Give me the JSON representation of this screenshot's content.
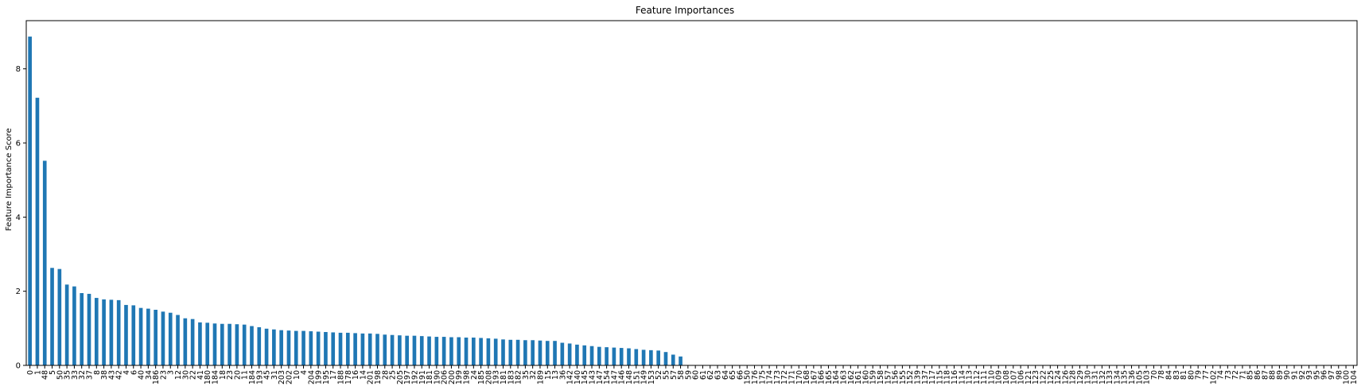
{
  "chart_data": {
    "type": "bar",
    "title": "Feature Importances",
    "xlabel": "",
    "ylabel": "Feature Importance Score",
    "ylim": [
      0,
      9.3
    ],
    "yticks": [
      0,
      2,
      4,
      6,
      8
    ],
    "grid": false,
    "legend": "none",
    "bar_color": "#1f77b4",
    "categories": [
      "0",
      "1",
      "48",
      "5",
      "50",
      "35",
      "33",
      "32",
      "37",
      "8",
      "38",
      "43",
      "42",
      "4",
      "6",
      "40",
      "34",
      "186",
      "23",
      "3",
      "12",
      "30",
      "22",
      "41",
      "180",
      "184",
      "18",
      "23",
      "20",
      "11",
      "184",
      "193",
      "45",
      "31",
      "203",
      "202",
      "10",
      "4",
      "204",
      "199",
      "195",
      "17",
      "188",
      "178",
      "16",
      "14",
      "201",
      "198",
      "28",
      "25",
      "205",
      "197",
      "192",
      "191",
      "181",
      "190",
      "206",
      "200",
      "199",
      "198",
      "24",
      "185",
      "208",
      "193",
      "181",
      "183",
      "182",
      "35",
      "32",
      "189",
      "15",
      "13",
      "36",
      "142",
      "140",
      "145",
      "143",
      "147",
      "154",
      "147",
      "146",
      "148",
      "151",
      "149",
      "153",
      "52",
      "55",
      "57",
      "58",
      "59",
      "60",
      "61",
      "62",
      "63",
      "64",
      "65",
      "66",
      "150",
      "176",
      "175",
      "174",
      "173",
      "172",
      "171",
      "170",
      "168",
      "167",
      "166",
      "165",
      "164",
      "163",
      "162",
      "161",
      "160",
      "159",
      "158",
      "157",
      "156",
      "155",
      "152",
      "139",
      "137",
      "117",
      "115",
      "118",
      "116",
      "114",
      "113",
      "112",
      "111",
      "110",
      "109",
      "108",
      "107",
      "106",
      "121",
      "123",
      "122",
      "125",
      "124",
      "126",
      "128",
      "129",
      "130",
      "131",
      "132",
      "133",
      "134",
      "135",
      "136",
      "105",
      "103",
      "70",
      "78",
      "84",
      "83",
      "81",
      "80",
      "79",
      "77",
      "102",
      "74",
      "73",
      "72",
      "71",
      "85",
      "86",
      "87",
      "88",
      "89",
      "90",
      "91",
      "92",
      "93",
      "95",
      "96",
      "97",
      "98",
      "100",
      "104"
    ],
    "values": [
      8.87,
      7.22,
      5.52,
      2.63,
      2.6,
      2.18,
      2.13,
      1.95,
      1.93,
      1.82,
      1.78,
      1.77,
      1.76,
      1.63,
      1.62,
      1.55,
      1.53,
      1.5,
      1.45,
      1.42,
      1.36,
      1.27,
      1.25,
      1.16,
      1.15,
      1.13,
      1.12,
      1.12,
      1.11,
      1.1,
      1.06,
      1.03,
      0.99,
      0.97,
      0.95,
      0.94,
      0.93,
      0.93,
      0.92,
      0.91,
      0.9,
      0.89,
      0.88,
      0.88,
      0.87,
      0.86,
      0.86,
      0.85,
      0.83,
      0.82,
      0.81,
      0.8,
      0.8,
      0.79,
      0.78,
      0.77,
      0.77,
      0.76,
      0.76,
      0.75,
      0.75,
      0.74,
      0.73,
      0.72,
      0.7,
      0.69,
      0.69,
      0.68,
      0.68,
      0.67,
      0.66,
      0.66,
      0.61,
      0.59,
      0.56,
      0.54,
      0.52,
      0.5,
      0.49,
      0.48,
      0.47,
      0.46,
      0.44,
      0.42,
      0.41,
      0.4,
      0.36,
      0.29,
      0.24,
      0,
      0,
      0,
      0,
      0,
      0,
      0,
      0,
      0,
      0,
      0,
      0,
      0,
      0,
      0,
      0,
      0,
      0,
      0,
      0,
      0,
      0,
      0,
      0,
      0,
      0,
      0,
      0,
      0,
      0,
      0,
      0,
      0,
      0,
      0,
      0,
      0,
      0,
      0,
      0,
      0,
      0,
      0,
      0,
      0,
      0,
      0,
      0,
      0,
      0,
      0,
      0,
      0,
      0,
      0,
      0,
      0,
      0,
      0,
      0,
      0,
      0,
      0,
      0,
      0,
      0,
      0,
      0,
      0,
      0,
      0,
      0,
      0,
      0,
      0,
      0,
      0,
      0,
      0,
      0,
      0,
      0,
      0,
      0,
      0,
      0,
      0,
      0,
      0,
      0,
      0
    ]
  }
}
